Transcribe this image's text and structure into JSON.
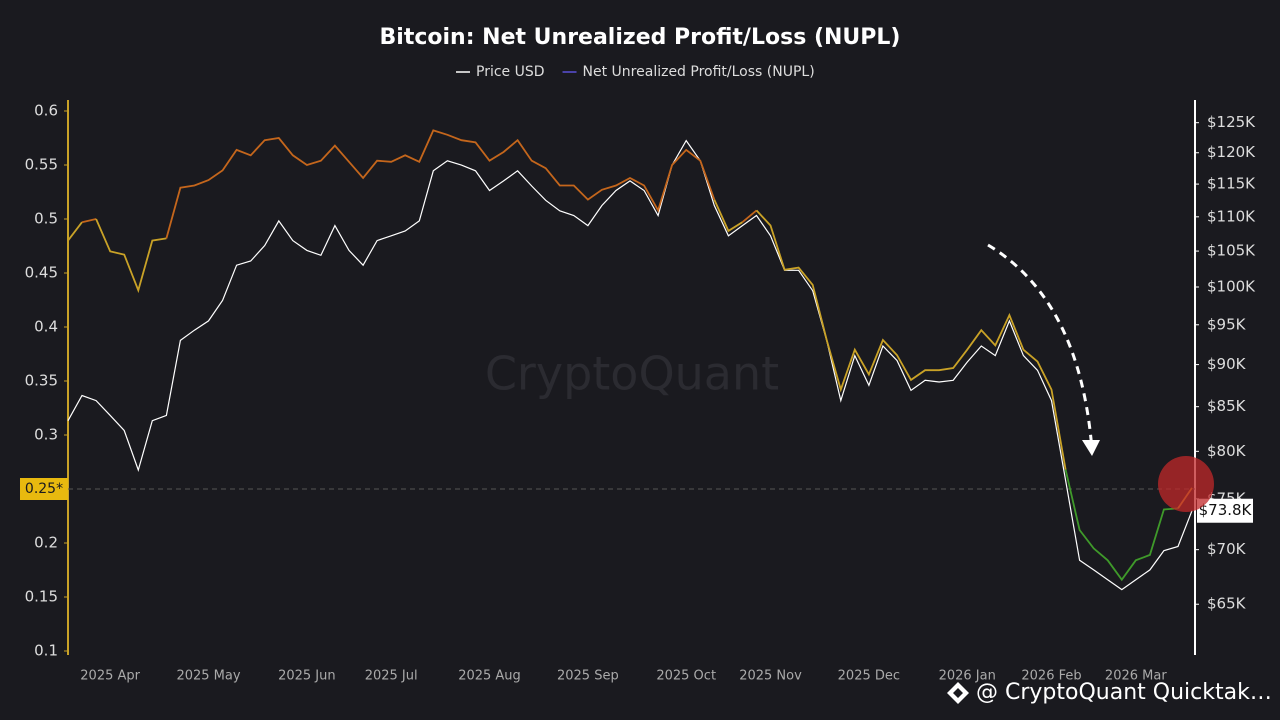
{
  "chart_data": {
    "type": "line",
    "title": "Bitcoin: Net Unrealized Profit/Loss (NUPL)",
    "watermark": "CryptoQuant",
    "footer": "@ CryptoQuant Quicktak…",
    "categories": [
      null,
      null,
      null,
      "2025 Apr",
      null,
      null,
      null,
      null,
      null,
      null,
      "2025 May",
      null,
      null,
      null,
      null,
      null,
      null,
      "2025 Jun",
      null,
      null,
      null,
      null,
      null,
      "2025 Jul",
      null,
      null,
      null,
      null,
      null,
      null,
      "2025 Aug",
      null,
      null,
      null,
      null,
      null,
      null,
      "2025 Sep",
      null,
      null,
      null,
      null,
      null,
      null,
      "2025 Oct",
      null,
      null,
      null,
      null,
      null,
      "2025 Nov",
      null,
      null,
      null,
      null,
      null,
      null,
      "2025 Dec",
      null,
      null,
      null,
      null,
      null,
      null,
      "2026 Jan",
      null,
      null,
      null,
      null,
      null,
      "2026 Feb",
      null,
      null,
      null,
      null,
      null,
      "2026 Mar",
      null,
      null,
      null,
      null
    ],
    "series": [
      {
        "name": "Price USD",
        "color": "#ffffff",
        "axis": "y2",
        "values": [
          83400,
          86300,
          85700,
          84000,
          82300,
          78000,
          83400,
          84000,
          93000,
          94300,
          95500,
          98200,
          103000,
          103600,
          105800,
          109400,
          106500,
          105100,
          104400,
          108700,
          105100,
          103000,
          106500,
          107200,
          107900,
          109400,
          117100,
          118700,
          118000,
          117100,
          114000,
          115500,
          117100,
          114700,
          112500,
          110900,
          110200,
          108700,
          111700,
          114000,
          115500,
          114000,
          110200,
          118000,
          122000,
          118700,
          111700,
          107200,
          108700,
          110200,
          107200,
          102300,
          102300,
          99500,
          93000,
          85700,
          91100,
          87500,
          92300,
          90500,
          86900,
          88100,
          87900,
          88100,
          90300,
          92300,
          91100,
          95500,
          91100,
          89300,
          85700,
          76900,
          69000,
          68100,
          67200,
          66300,
          67200,
          68100,
          69900,
          70300,
          73800
        ]
      },
      {
        "name": "Net Unrealized Profit/Loss (NUPL)",
        "color": "#5b4fd6",
        "zone_breaks": [
          0.5,
          0.25
        ],
        "zone_colors": [
          "#c4661c",
          "#c9a227",
          "#3f9a2a"
        ],
        "values": [
          0.48,
          0.497,
          0.5,
          0.47,
          0.467,
          0.434,
          0.48,
          0.482,
          0.529,
          0.531,
          0.536,
          0.545,
          0.564,
          0.559,
          0.573,
          0.575,
          0.559,
          0.55,
          0.554,
          0.568,
          0.553,
          0.538,
          0.554,
          0.553,
          0.559,
          0.553,
          0.582,
          0.578,
          0.573,
          0.571,
          0.554,
          0.562,
          0.573,
          0.554,
          0.547,
          0.531,
          0.531,
          0.518,
          0.527,
          0.531,
          0.538,
          0.531,
          0.508,
          0.55,
          0.564,
          0.554,
          0.518,
          0.489,
          0.497,
          0.508,
          0.494,
          0.453,
          0.455,
          0.439,
          0.388,
          0.342,
          0.379,
          0.356,
          0.388,
          0.374,
          0.351,
          0.36,
          0.36,
          0.362,
          0.379,
          0.397,
          0.383,
          0.411,
          0.379,
          0.368,
          0.342,
          0.268,
          0.212,
          0.195,
          0.184,
          0.166,
          0.184,
          0.189,
          0.231,
          0.232,
          0.251
        ]
      }
    ],
    "ylim": [
      0.1,
      0.6
    ],
    "yticks": [
      0.1,
      0.15,
      0.2,
      0.3,
      0.35,
      0.4,
      0.45,
      0.5,
      0.55,
      0.6
    ],
    "y2lim": [
      61000,
      127000
    ],
    "y2log": true,
    "y2ticks": [
      {
        "value": 65000,
        "label": "$65K"
      },
      {
        "value": 70000,
        "label": "$70K"
      },
      {
        "value": 75000,
        "label": "$75K"
      },
      {
        "value": 80000,
        "label": "$80K"
      },
      {
        "value": 85000,
        "label": "$85K"
      },
      {
        "value": 90000,
        "label": "$90K"
      },
      {
        "value": 95000,
        "label": "$95K"
      },
      {
        "value": 100000,
        "label": "$100K"
      },
      {
        "value": 105000,
        "label": "$105K"
      },
      {
        "value": 110000,
        "label": "$110K"
      },
      {
        "value": 115000,
        "label": "$115K"
      },
      {
        "value": 120000,
        "label": "$120K"
      },
      {
        "value": 125000,
        "label": "$125K"
      }
    ],
    "reference_line": {
      "value": 0.25,
      "label": "0.25*"
    },
    "current_price": {
      "value": 73800,
      "label": "$73.8K"
    },
    "grid": false
  }
}
